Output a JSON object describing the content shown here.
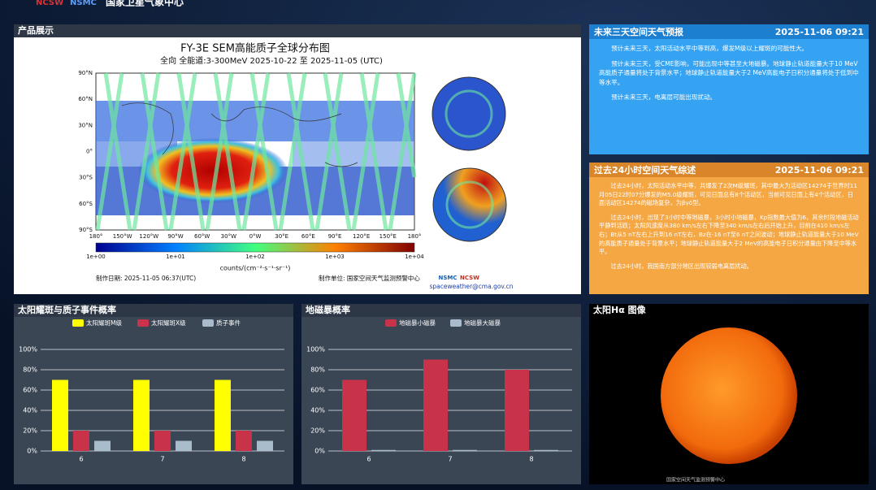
{
  "header": {
    "logos": [
      "NCSW",
      "NSMC"
    ],
    "title": "国家卫星气象中心"
  },
  "product": {
    "title": "产品展示",
    "image": {
      "title": "FY-3E SEM高能质子全球分布图",
      "subtitle": "全向    全能道:3-300MeV    2025-10-22 至 2025-11-05 (UTC)",
      "lat_labels": [
        "90°N",
        "60°N",
        "30°N",
        "0°",
        "30°S",
        "60°S",
        "90°S"
      ],
      "lon_labels": [
        "180°",
        "150°W",
        "120°W",
        "90°W",
        "60°W",
        "30°W",
        "0°W",
        "30°E",
        "60°E",
        "90°E",
        "120°E",
        "150°E",
        "180°"
      ],
      "colorbar_labels": [
        "1e+00",
        "1e+01",
        "1e+02",
        "1e+03",
        "1e+04"
      ],
      "colorbar_unit": "counts/(cm⁻²·s⁻¹·sr⁻¹)",
      "date": "制作日期:    2025-11-05 06:37(UTC)",
      "producer": "制作单位:    国家空间天气监测预警中心",
      "logos": [
        "NSMC",
        "NCSW"
      ],
      "email": "spaceweather@cma.gov.cn"
    }
  },
  "forecast": {
    "title": "未来三天空间天气预报",
    "time": "2025-11-06 09:21",
    "paragraphs": [
      "预计未来三天，太阳活动水平中等到高，爆发M级以上耀斑的可能性大。",
      "预计未来三天，受CME影响，可能出现中等甚至大地磁暴。地球静止轨道能量大于10 MeV高能质子通量将处于背景水平；地球静止轨道能量大于2 MeV高能电子日积分通量将处于低到中等水平。",
      "预计未来三天，电离层可能出现扰动。"
    ]
  },
  "summary": {
    "title": "过去24小时空间天气综述",
    "time": "2025-11-06 09:21",
    "paragraphs": [
      "过去24小时，太阳活动水平中等，共爆发了2次M级耀斑，其中最大为活动区14274于世界时11月05日22时07分爆发的M5.0级耀斑，可见日面总有8个活动区，当前可见日面上有4个活动区，日面活动区14274的磁场复杂，为βγδ型。",
      "过去24小时，出现了3小时中等地磁暴，3小时小地磁暴，Kp指数最大值为6，其余时段地磁活动平静到活跃；太阳风速度从380 km/s左右下降至340 km/s左右后开始上升，目前在410 km/s左右；Bt从5 nT左右上升到16 nT左右，Bz在-16 nT至6 nT之间波动；地球静止轨道能量大于10 MeV的高能质子通量处于背景水平；地球静止轨道能量大于2 MeV的高能电子日积分通量由下降至中等水平。",
      "过去24小时，我国南方部分地区出现较弱电离层扰动。"
    ]
  },
  "sun": {
    "title": "太阳Hα 图像",
    "caption": "国家空间天气监测预警中心"
  },
  "chart_data": [
    {
      "type": "bar",
      "title": "太阳耀斑与质子事件概率",
      "categories": [
        "6",
        "7",
        "8"
      ],
      "series": [
        {
          "name": "太阳耀斑M级",
          "color": "#ffff00",
          "values": [
            70,
            70,
            70
          ]
        },
        {
          "name": "太阳耀斑X级",
          "color": "#c8334a",
          "values": [
            20,
            20,
            20
          ]
        },
        {
          "name": "质子事件",
          "color": "#a9bccb",
          "values": [
            10,
            10,
            10
          ]
        }
      ],
      "ylim": [
        0,
        100
      ],
      "yticks": [
        {
          "value": 0,
          "label": "0%"
        },
        {
          "value": 20,
          "label": "20%"
        },
        {
          "value": 40,
          "label": "40%"
        },
        {
          "value": 60,
          "label": "60%"
        },
        {
          "value": 80,
          "label": "80%"
        },
        {
          "value": 100,
          "label": "100%"
        }
      ],
      "grid": true,
      "legend": "top"
    },
    {
      "type": "bar",
      "title": "地磁暴概率",
      "categories": [
        "6",
        "7",
        "8"
      ],
      "series": [
        {
          "name": "地磁暴小磁暴",
          "color": "#c8334a",
          "values": [
            70,
            90,
            80
          ]
        },
        {
          "name": "地磁暴大磁暴",
          "color": "#a9bccb",
          "values": [
            1,
            1,
            1
          ]
        }
      ],
      "ylim": [
        0,
        100
      ],
      "yticks": [
        {
          "value": 0,
          "label": "0%"
        },
        {
          "value": 20,
          "label": "20%"
        },
        {
          "value": 40,
          "label": "40%"
        },
        {
          "value": 60,
          "label": "60%"
        },
        {
          "value": 80,
          "label": "80%"
        },
        {
          "value": 100,
          "label": "100%"
        }
      ],
      "grid": true,
      "legend": "top"
    }
  ]
}
